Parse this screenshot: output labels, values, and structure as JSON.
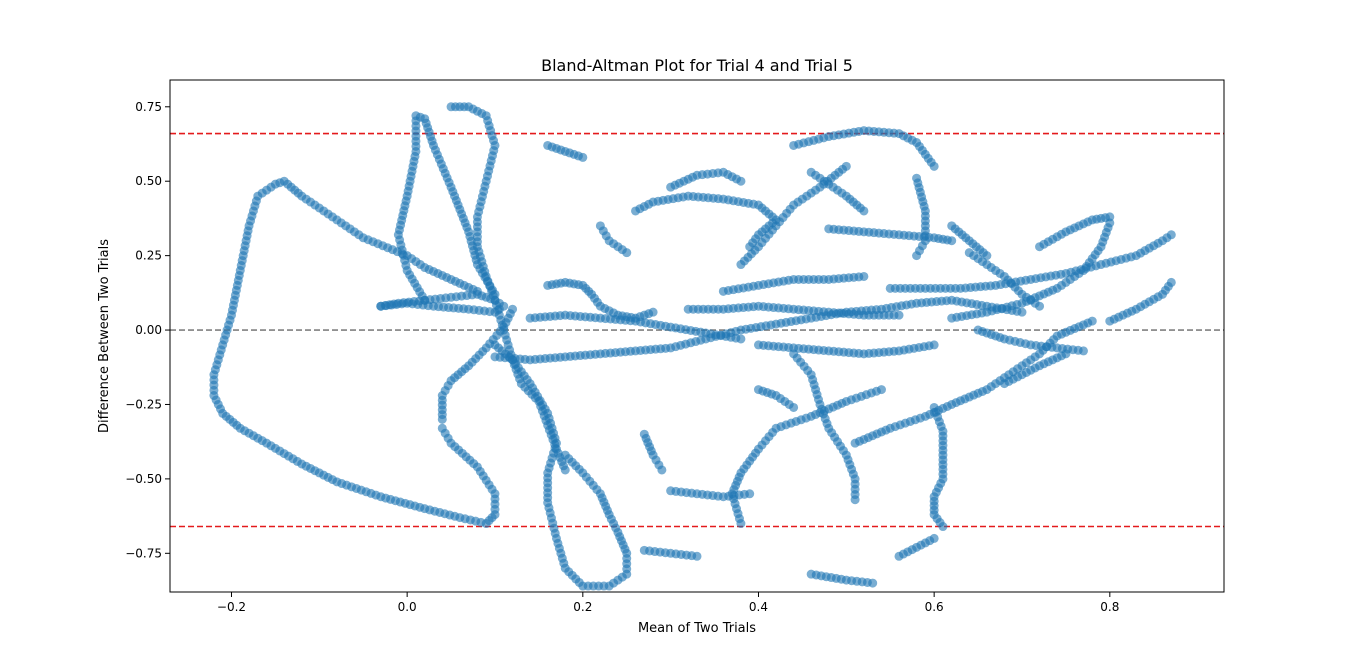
{
  "chart_data": {
    "type": "scatter",
    "title": "Bland-Altman Plot for Trial 4 and Trial 5",
    "xlabel": "Mean of Two Trials",
    "ylabel": "Difference Between Two Trials",
    "xlim": [
      -0.27,
      0.93
    ],
    "ylim": [
      -0.88,
      0.84
    ],
    "xticks": [
      -0.2,
      0.0,
      0.2,
      0.4,
      0.6,
      0.8
    ],
    "xtick_labels": [
      "−0.2",
      "0.0",
      "0.2",
      "0.4",
      "0.6",
      "0.8"
    ],
    "yticks": [
      -0.75,
      -0.5,
      -0.25,
      0.0,
      0.25,
      0.5,
      0.75
    ],
    "ytick_labels": [
      "−0.75",
      "−0.50",
      "−0.25",
      "0.00",
      "0.25",
      "0.50",
      "0.75"
    ],
    "grid": false,
    "marker_color": "#1f77b4",
    "marker_alpha": 0.6,
    "reference_lines": [
      {
        "kind": "mean_difference",
        "y": 0.0,
        "color": "#808080",
        "style": "dashed"
      },
      {
        "kind": "upper_limit_of_agreement",
        "y": 0.66,
        "color": "#e41a1c",
        "style": "dashed"
      },
      {
        "kind": "lower_limit_of_agreement",
        "y": -0.66,
        "color": "#e41a1c",
        "style": "dashed"
      }
    ],
    "traces": [
      [
        [
          -0.03,
          0.08
        ],
        [
          -0.01,
          0.09
        ],
        [
          0.02,
          0.1
        ],
        [
          0.05,
          0.11
        ],
        [
          0.08,
          0.12
        ],
        [
          0.1,
          0.1
        ],
        [
          0.11,
          0.08
        ],
        [
          0.1,
          0.06
        ],
        [
          0.07,
          0.07
        ],
        [
          0.03,
          0.08
        ],
        [
          0.0,
          0.09
        ],
        [
          -0.03,
          0.08
        ]
      ],
      [
        [
          0.08,
          0.13
        ],
        [
          0.05,
          0.17
        ],
        [
          0.02,
          0.21
        ],
        [
          0.0,
          0.25
        ],
        [
          -0.05,
          0.31
        ],
        [
          -0.09,
          0.39
        ],
        [
          -0.12,
          0.45
        ],
        [
          -0.14,
          0.5
        ],
        [
          -0.15,
          0.49
        ],
        [
          -0.17,
          0.45
        ],
        [
          -0.18,
          0.35
        ],
        [
          -0.19,
          0.2
        ],
        [
          -0.2,
          0.05
        ],
        [
          -0.21,
          -0.05
        ],
        [
          -0.22,
          -0.15
        ],
        [
          -0.22,
          -0.22
        ],
        [
          -0.21,
          -0.28
        ],
        [
          -0.19,
          -0.33
        ],
        [
          -0.16,
          -0.38
        ],
        [
          -0.12,
          -0.45
        ],
        [
          -0.08,
          -0.51
        ],
        [
          -0.03,
          -0.56
        ],
        [
          0.02,
          -0.6
        ],
        [
          0.06,
          -0.63
        ],
        [
          0.09,
          -0.65
        ],
        [
          0.1,
          -0.62
        ],
        [
          0.1,
          -0.55
        ],
        [
          0.08,
          -0.46
        ],
        [
          0.05,
          -0.38
        ],
        [
          0.04,
          -0.33
        ]
      ],
      [
        [
          0.02,
          0.1
        ],
        [
          0.0,
          0.2
        ],
        [
          -0.01,
          0.32
        ],
        [
          0.0,
          0.45
        ],
        [
          0.01,
          0.6
        ],
        [
          0.01,
          0.72
        ],
        [
          0.02,
          0.71
        ],
        [
          0.03,
          0.62
        ],
        [
          0.05,
          0.48
        ],
        [
          0.07,
          0.33
        ],
        [
          0.08,
          0.22
        ],
        [
          0.1,
          0.12
        ]
      ],
      [
        [
          0.12,
          0.07
        ],
        [
          0.11,
          0.01
        ],
        [
          0.09,
          -0.06
        ],
        [
          0.07,
          -0.12
        ],
        [
          0.05,
          -0.17
        ],
        [
          0.04,
          -0.22
        ],
        [
          0.04,
          -0.3
        ]
      ],
      [
        [
          0.05,
          0.75
        ],
        [
          0.07,
          0.75
        ],
        [
          0.09,
          0.72
        ],
        [
          0.1,
          0.62
        ],
        [
          0.09,
          0.5
        ],
        [
          0.08,
          0.38
        ],
        [
          0.08,
          0.28
        ],
        [
          0.09,
          0.18
        ],
        [
          0.1,
          0.1
        ],
        [
          0.11,
          0.0
        ],
        [
          0.12,
          -0.1
        ],
        [
          0.13,
          -0.18
        ],
        [
          0.15,
          -0.24
        ],
        [
          0.16,
          -0.32
        ],
        [
          0.17,
          -0.4
        ],
        [
          0.18,
          -0.47
        ]
      ],
      [
        [
          0.1,
          -0.05
        ],
        [
          0.12,
          -0.1
        ],
        [
          0.14,
          -0.18
        ],
        [
          0.16,
          -0.28
        ],
        [
          0.17,
          -0.38
        ],
        [
          0.16,
          -0.48
        ],
        [
          0.16,
          -0.58
        ],
        [
          0.17,
          -0.7
        ],
        [
          0.18,
          -0.8
        ],
        [
          0.2,
          -0.86
        ],
        [
          0.23,
          -0.86
        ],
        [
          0.25,
          -0.82
        ],
        [
          0.25,
          -0.75
        ],
        [
          0.24,
          -0.68
        ],
        [
          0.23,
          -0.62
        ],
        [
          0.22,
          -0.55
        ],
        [
          0.2,
          -0.48
        ],
        [
          0.18,
          -0.42
        ]
      ],
      [
        [
          0.16,
          0.15
        ],
        [
          0.18,
          0.16
        ],
        [
          0.2,
          0.15
        ],
        [
          0.21,
          0.12
        ],
        [
          0.22,
          0.08
        ],
        [
          0.24,
          0.05
        ],
        [
          0.26,
          0.04
        ],
        [
          0.28,
          0.06
        ]
      ],
      [
        [
          0.1,
          -0.09
        ],
        [
          0.14,
          -0.1
        ],
        [
          0.18,
          -0.09
        ],
        [
          0.22,
          -0.08
        ],
        [
          0.26,
          -0.07
        ],
        [
          0.3,
          -0.06
        ],
        [
          0.34,
          -0.03
        ],
        [
          0.38,
          0.0
        ],
        [
          0.42,
          0.02
        ],
        [
          0.46,
          0.04
        ],
        [
          0.5,
          0.06
        ],
        [
          0.54,
          0.07
        ],
        [
          0.58,
          0.09
        ],
        [
          0.62,
          0.1
        ],
        [
          0.66,
          0.08
        ],
        [
          0.7,
          0.06
        ]
      ],
      [
        [
          0.14,
          0.04
        ],
        [
          0.18,
          0.05
        ],
        [
          0.22,
          0.04
        ],
        [
          0.26,
          0.03
        ],
        [
          0.3,
          0.01
        ],
        [
          0.34,
          -0.01
        ],
        [
          0.38,
          -0.03
        ]
      ],
      [
        [
          0.26,
          0.4
        ],
        [
          0.28,
          0.43
        ],
        [
          0.32,
          0.45
        ],
        [
          0.36,
          0.44
        ],
        [
          0.4,
          0.42
        ],
        [
          0.42,
          0.37
        ],
        [
          0.4,
          0.32
        ],
        [
          0.39,
          0.28
        ]
      ],
      [
        [
          0.3,
          0.48
        ],
        [
          0.33,
          0.52
        ],
        [
          0.36,
          0.53
        ],
        [
          0.38,
          0.5
        ]
      ],
      [
        [
          0.36,
          0.13
        ],
        [
          0.4,
          0.15
        ],
        [
          0.44,
          0.17
        ],
        [
          0.48,
          0.17
        ],
        [
          0.52,
          0.18
        ]
      ],
      [
        [
          0.32,
          0.07
        ],
        [
          0.36,
          0.07
        ],
        [
          0.4,
          0.08
        ],
        [
          0.44,
          0.07
        ],
        [
          0.48,
          0.06
        ],
        [
          0.52,
          0.05
        ],
        [
          0.56,
          0.05
        ]
      ],
      [
        [
          0.4,
          -0.05
        ],
        [
          0.44,
          -0.06
        ],
        [
          0.48,
          -0.07
        ],
        [
          0.52,
          -0.08
        ],
        [
          0.56,
          -0.07
        ],
        [
          0.6,
          -0.05
        ]
      ],
      [
        [
          0.38,
          0.22
        ],
        [
          0.4,
          0.28
        ],
        [
          0.42,
          0.35
        ],
        [
          0.44,
          0.42
        ],
        [
          0.47,
          0.48
        ],
        [
          0.5,
          0.55
        ]
      ],
      [
        [
          0.38,
          -0.65
        ],
        [
          0.37,
          -0.55
        ],
        [
          0.38,
          -0.48
        ],
        [
          0.4,
          -0.4
        ],
        [
          0.42,
          -0.33
        ],
        [
          0.46,
          -0.29
        ],
        [
          0.5,
          -0.24
        ],
        [
          0.54,
          -0.2
        ]
      ],
      [
        [
          0.44,
          0.62
        ],
        [
          0.48,
          0.65
        ],
        [
          0.52,
          0.67
        ],
        [
          0.56,
          0.66
        ],
        [
          0.58,
          0.63
        ],
        [
          0.6,
          0.55
        ]
      ],
      [
        [
          0.46,
          0.53
        ],
        [
          0.48,
          0.49
        ],
        [
          0.5,
          0.45
        ],
        [
          0.52,
          0.4
        ]
      ],
      [
        [
          0.48,
          0.34
        ],
        [
          0.52,
          0.33
        ],
        [
          0.56,
          0.32
        ],
        [
          0.6,
          0.31
        ],
        [
          0.62,
          0.3
        ]
      ],
      [
        [
          0.44,
          -0.08
        ],
        [
          0.46,
          -0.15
        ],
        [
          0.47,
          -0.25
        ],
        [
          0.48,
          -0.33
        ],
        [
          0.5,
          -0.42
        ],
        [
          0.51,
          -0.5
        ],
        [
          0.51,
          -0.57
        ]
      ],
      [
        [
          0.51,
          -0.38
        ],
        [
          0.55,
          -0.33
        ],
        [
          0.59,
          -0.29
        ],
        [
          0.62,
          -0.25
        ],
        [
          0.66,
          -0.2
        ],
        [
          0.69,
          -0.14
        ],
        [
          0.72,
          -0.08
        ],
        [
          0.74,
          -0.02
        ],
        [
          0.78,
          0.03
        ]
      ],
      [
        [
          0.58,
          0.51
        ],
        [
          0.59,
          0.4
        ],
        [
          0.59,
          0.3
        ],
        [
          0.58,
          0.25
        ]
      ],
      [
        [
          0.6,
          -0.26
        ],
        [
          0.61,
          -0.34
        ],
        [
          0.61,
          -0.42
        ],
        [
          0.61,
          -0.5
        ],
        [
          0.6,
          -0.56
        ],
        [
          0.6,
          -0.62
        ],
        [
          0.61,
          -0.66
        ]
      ],
      [
        [
          0.56,
          -0.76
        ],
        [
          0.58,
          -0.73
        ],
        [
          0.6,
          -0.7
        ]
      ],
      [
        [
          0.55,
          0.14
        ],
        [
          0.59,
          0.14
        ],
        [
          0.63,
          0.14
        ],
        [
          0.67,
          0.15
        ],
        [
          0.71,
          0.17
        ],
        [
          0.75,
          0.19
        ],
        [
          0.79,
          0.22
        ],
        [
          0.83,
          0.25
        ],
        [
          0.86,
          0.3
        ],
        [
          0.87,
          0.32
        ]
      ],
      [
        [
          0.64,
          0.26
        ],
        [
          0.66,
          0.22
        ],
        [
          0.68,
          0.18
        ],
        [
          0.7,
          0.12
        ],
        [
          0.72,
          0.08
        ]
      ],
      [
        [
          0.62,
          0.04
        ],
        [
          0.66,
          0.06
        ],
        [
          0.7,
          0.09
        ],
        [
          0.74,
          0.14
        ],
        [
          0.77,
          0.2
        ],
        [
          0.79,
          0.28
        ],
        [
          0.8,
          0.36
        ]
      ],
      [
        [
          0.65,
          0.0
        ],
        [
          0.68,
          -0.03
        ],
        [
          0.71,
          -0.05
        ],
        [
          0.74,
          -0.06
        ],
        [
          0.77,
          -0.07
        ]
      ],
      [
        [
          0.68,
          -0.18
        ],
        [
          0.7,
          -0.15
        ],
        [
          0.72,
          -0.12
        ],
        [
          0.75,
          -0.08
        ]
      ],
      [
        [
          0.8,
          0.03
        ],
        [
          0.83,
          0.07
        ],
        [
          0.86,
          0.12
        ],
        [
          0.87,
          0.16
        ]
      ],
      [
        [
          0.72,
          0.28
        ],
        [
          0.75,
          0.33
        ],
        [
          0.78,
          0.37
        ],
        [
          0.8,
          0.38
        ]
      ],
      [
        [
          0.62,
          0.35
        ],
        [
          0.64,
          0.3
        ],
        [
          0.66,
          0.25
        ]
      ],
      [
        [
          0.27,
          -0.35
        ],
        [
          0.28,
          -0.42
        ],
        [
          0.29,
          -0.47
        ]
      ],
      [
        [
          0.3,
          -0.54
        ],
        [
          0.33,
          -0.55
        ],
        [
          0.36,
          -0.56
        ],
        [
          0.39,
          -0.55
        ]
      ],
      [
        [
          0.27,
          -0.74
        ],
        [
          0.3,
          -0.75
        ],
        [
          0.33,
          -0.76
        ]
      ],
      [
        [
          0.4,
          -0.2
        ],
        [
          0.42,
          -0.22
        ],
        [
          0.44,
          -0.26
        ]
      ],
      [
        [
          0.46,
          -0.82
        ],
        [
          0.5,
          -0.84
        ],
        [
          0.53,
          -0.85
        ]
      ],
      [
        [
          0.16,
          0.62
        ],
        [
          0.18,
          0.6
        ],
        [
          0.2,
          0.58
        ]
      ],
      [
        [
          0.22,
          0.35
        ],
        [
          0.23,
          0.3
        ],
        [
          0.25,
          0.26
        ]
      ]
    ]
  }
}
